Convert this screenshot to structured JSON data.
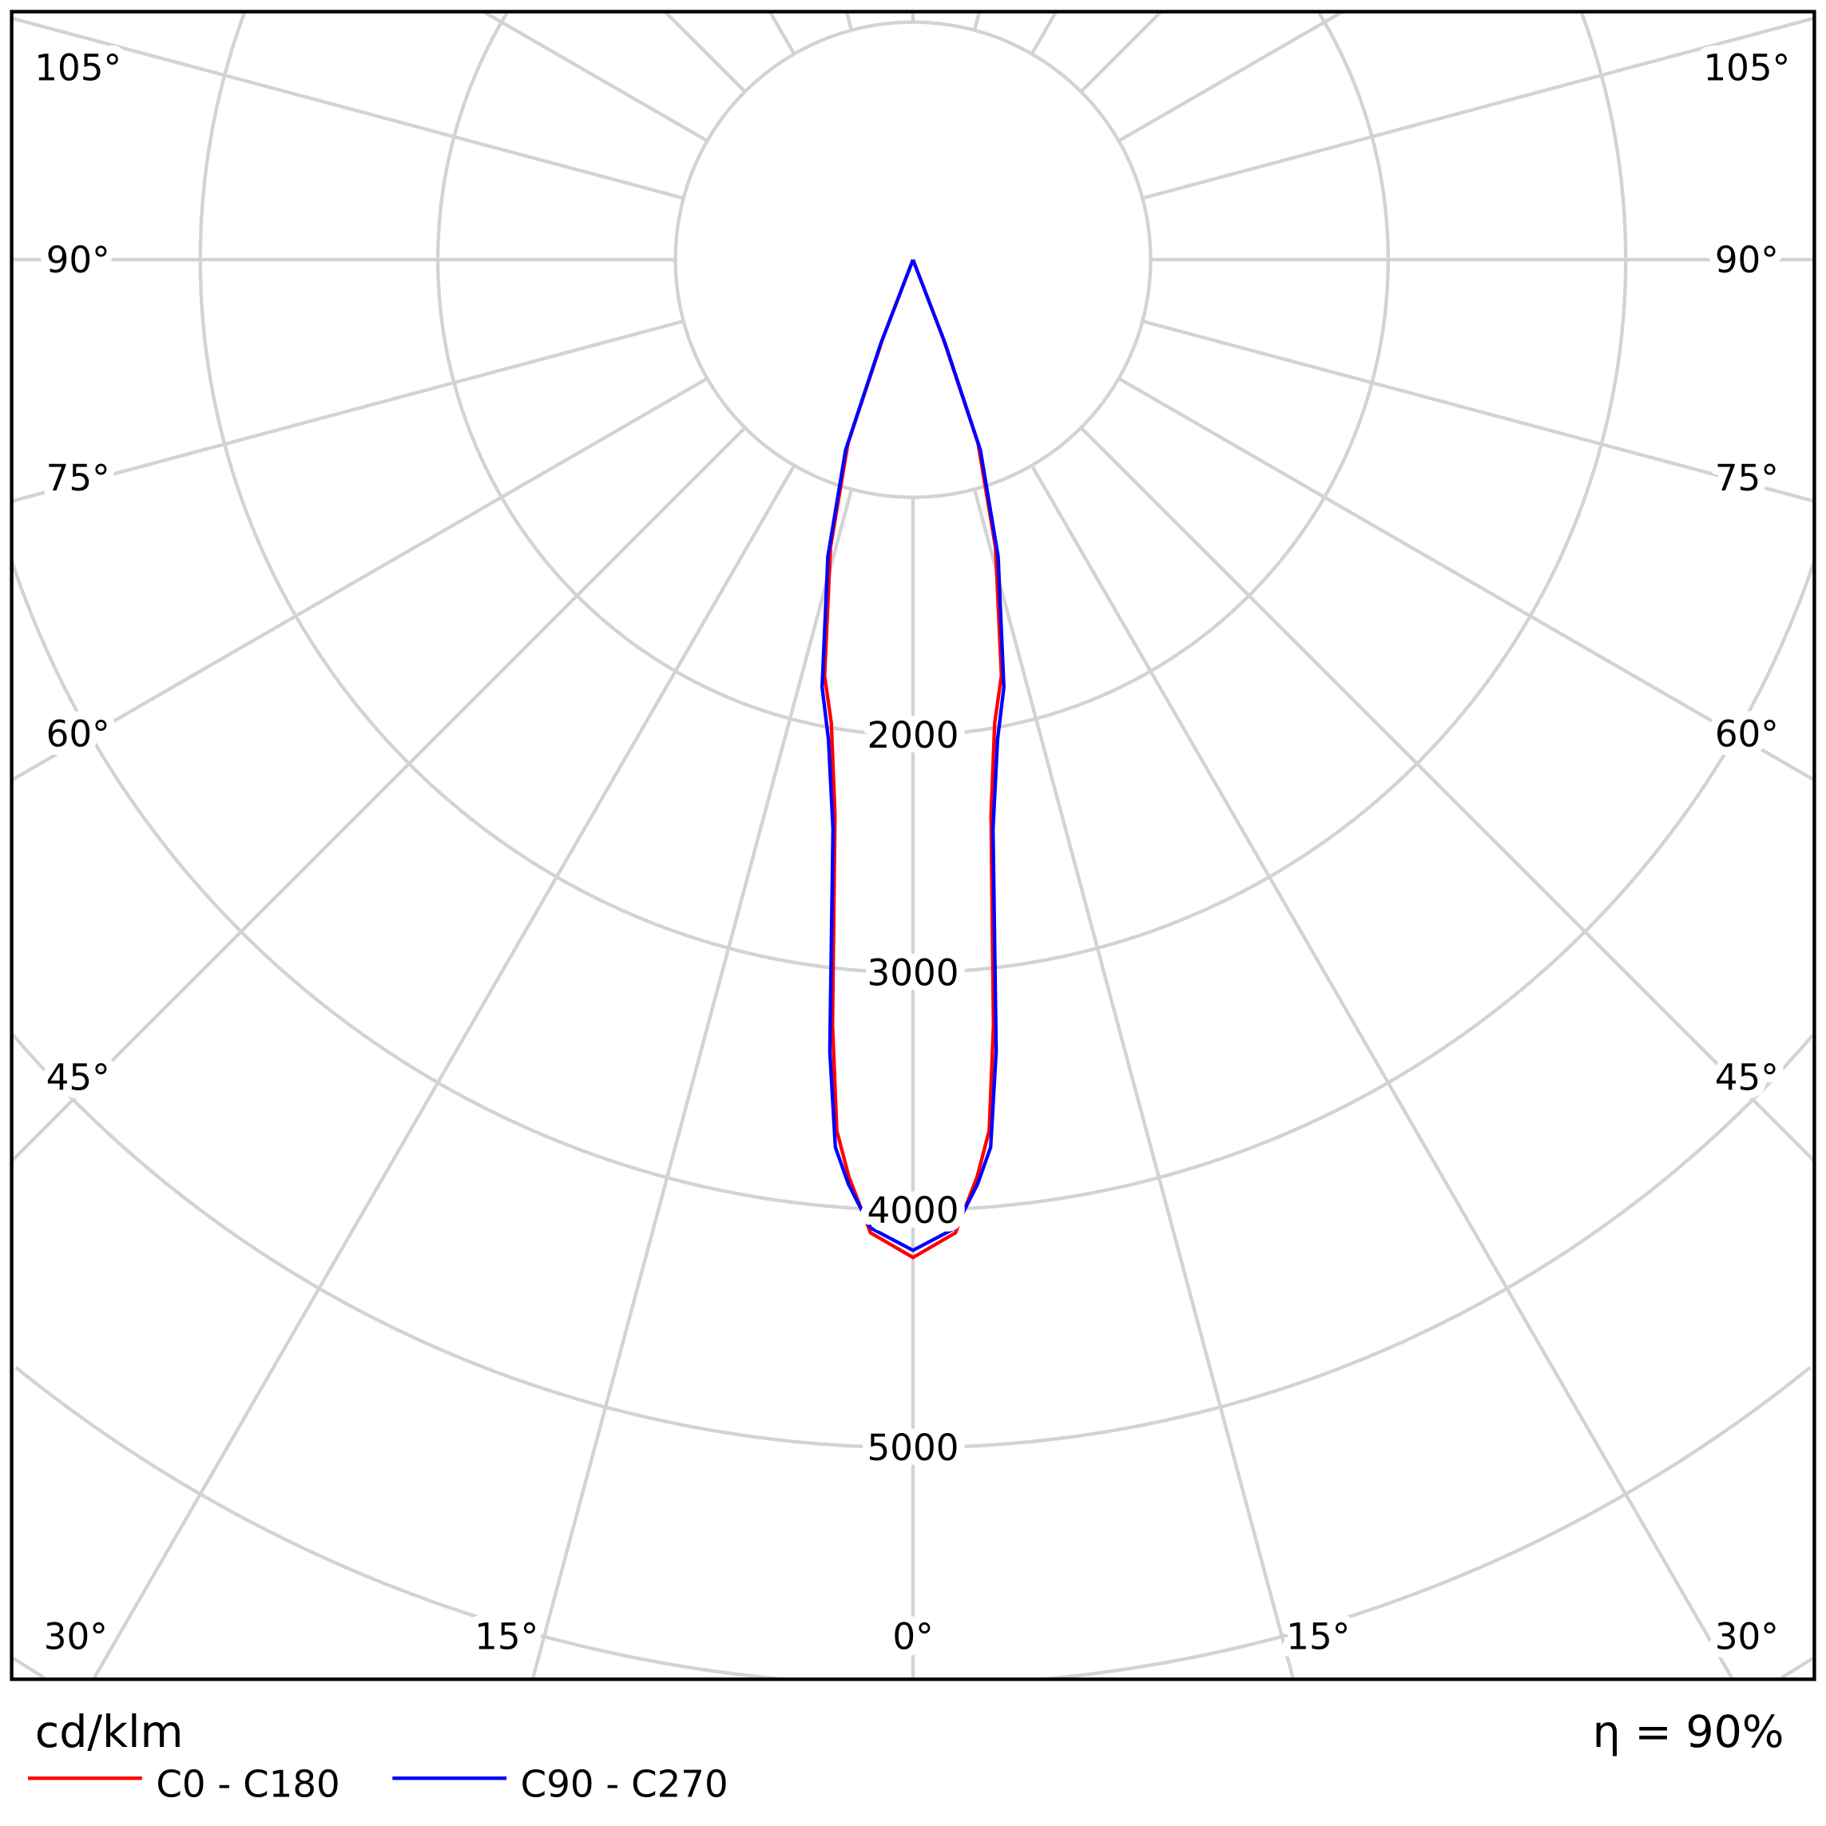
{
  "chart_data": {
    "type": "polar",
    "unit_label": "cd/klm",
    "efficiency_label": "η = 90%",
    "radial_ticks": [
      2000,
      3000,
      4000,
      5000
    ],
    "radial_grid_step": 1000,
    "angle_tick_labels": {
      "left": [
        "105°",
        "90°",
        "75°",
        "60°",
        "45°"
      ],
      "right": [
        "105°",
        "90°",
        "75°",
        "60°",
        "45°"
      ],
      "bottom": [
        "30°",
        "15°",
        "0°",
        "15°",
        "30°"
      ]
    },
    "angle_grid_step_deg": 15,
    "grid": true,
    "legend_position": "bottom-left",
    "series": [
      {
        "name": "C0 - C180",
        "color": "#ff0000",
        "gamma": [
          0,
          2.5,
          4,
          5,
          6,
          8,
          10,
          12,
          16,
          19.5,
          21,
          23
        ],
        "values": [
          4200,
          4100,
          3870,
          3680,
          3240,
          2360,
          1980,
          1790,
          1260,
          820,
          350,
          0
        ]
      },
      {
        "name": "C90 - C270",
        "color": "#0000ff",
        "gamma": [
          0,
          2.5,
          4,
          5,
          6,
          8,
          10,
          12,
          16,
          19.5,
          21,
          23
        ],
        "values": [
          4170,
          4080,
          3900,
          3750,
          3350,
          2420,
          2050,
          1840,
          1300,
          850,
          380,
          0
        ]
      }
    ]
  }
}
